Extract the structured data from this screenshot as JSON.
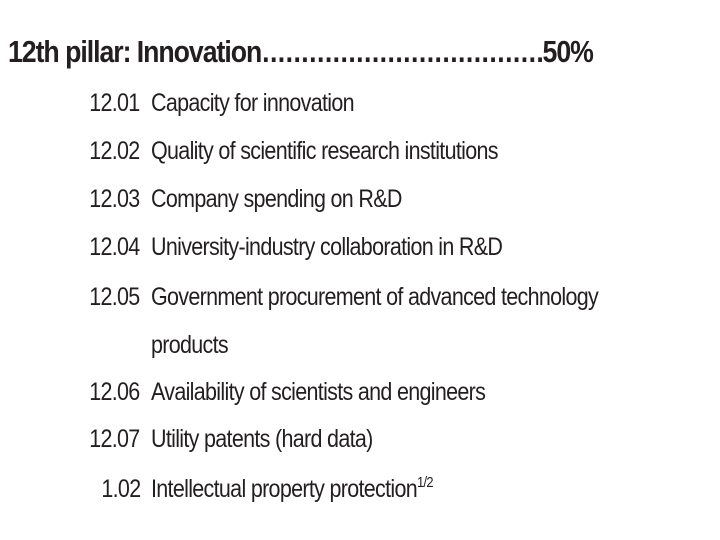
{
  "pillar": {
    "title": "12th pillar: Innovation",
    "leader": "................................................................................................",
    "weight": "50%"
  },
  "items": [
    {
      "code": "12.01",
      "label": "Capacity for innovation"
    },
    {
      "code": "12.02",
      "label": "Quality of scientific research institutions"
    },
    {
      "code": "12.03",
      "label": "Company spending on R&D"
    },
    {
      "code": "12.04",
      "label": "University-industry collaboration in R&D"
    },
    {
      "code": "12.05",
      "label_line1": "Government procurement of advanced technology",
      "label_line2": "products"
    },
    {
      "code": "12.06",
      "label": "Availability of scientists and engineers"
    },
    {
      "code": "12.07",
      "label": "Utility patents (hard data)"
    },
    {
      "code": "1.02",
      "label": "Intellectual property protection",
      "note": "1/2"
    }
  ]
}
